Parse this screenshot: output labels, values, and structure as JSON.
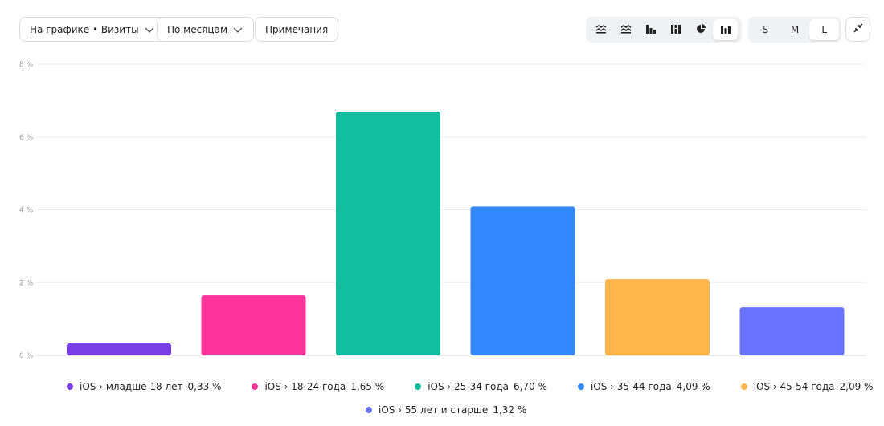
{
  "toolbar": {
    "metric_dropdown": "На графике • Визиты",
    "period_dropdown": "По месяцам",
    "notes_button": "Примечания",
    "chart_types": [
      {
        "icon": "stacked-area-icon"
      },
      {
        "icon": "stacked-lines-icon"
      },
      {
        "icon": "grouped-bar-icon"
      },
      {
        "icon": "stacked-bar-icon"
      },
      {
        "icon": "pie-icon"
      },
      {
        "icon": "bar-icon",
        "active": true
      }
    ],
    "sizes": [
      {
        "label": "S"
      },
      {
        "label": "M"
      },
      {
        "label": "L",
        "active": true
      }
    ],
    "collapse_icon": "collapse-icon"
  },
  "chart_data": {
    "type": "bar",
    "categories": [
      "iOS › младше 18 лет",
      "iOS › 18-24 года",
      "iOS › 25-34 года",
      "iOS › 35-44 года",
      "iOS › 45-54 года",
      "iOS › 55 лет и старше"
    ],
    "values": [
      0.33,
      1.65,
      6.7,
      4.09,
      2.09,
      1.32
    ],
    "value_labels": [
      "0,33 %",
      "1,65 %",
      "6,70 %",
      "4,09 %",
      "2,09 %",
      "1,32 %"
    ],
    "colors": [
      "#7a3fe4",
      "#ff3399",
      "#12bda0",
      "#3388ff",
      "#ffb54c",
      "#6a72ff"
    ],
    "ylim": [
      0,
      8
    ],
    "yticks": [
      0,
      2,
      4,
      6,
      8
    ],
    "ytick_labels": [
      "0 %",
      "2 %",
      "4 %",
      "6 %",
      "8 %"
    ],
    "grid": true,
    "legend_position": "bottom"
  }
}
